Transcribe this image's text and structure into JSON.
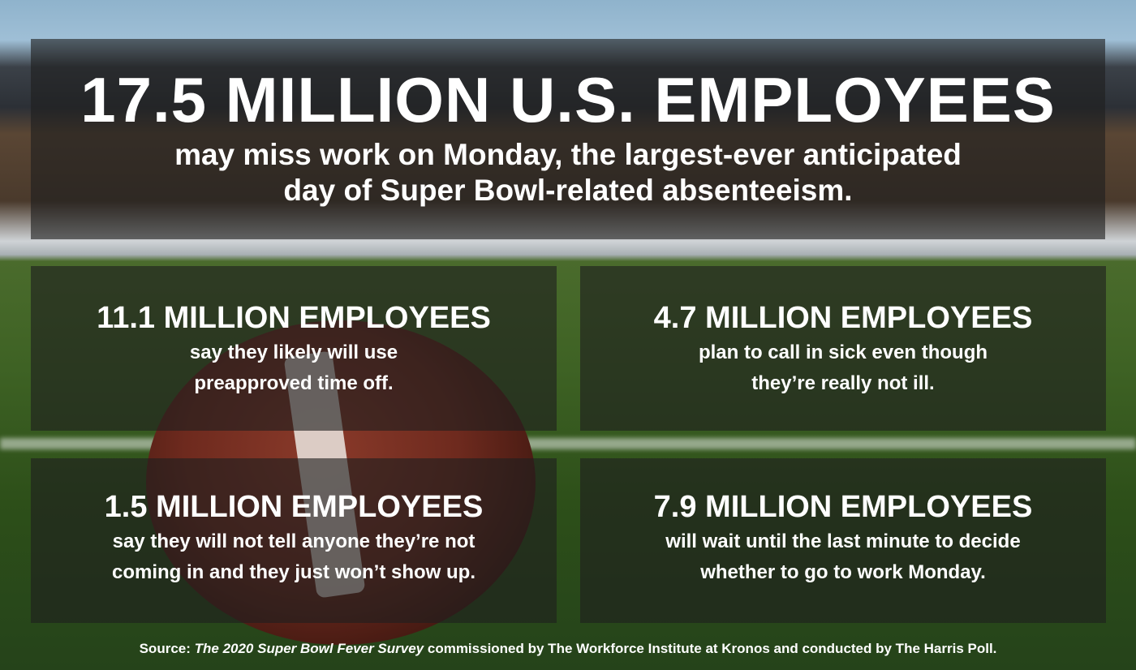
{
  "headline": {
    "title": "17.5 MILLION U.S. EMPLOYEES",
    "subtitle_line1": "may miss work on Monday, the largest-ever anticipated",
    "subtitle_line2": "day of Super Bowl-related absenteeism."
  },
  "stats": [
    {
      "title": "11.1 MILLION EMPLOYEES",
      "line1": "say they likely will use",
      "line2": "preapproved time off."
    },
    {
      "title": "4.7 MILLION EMPLOYEES",
      "line1": "plan to call in sick even though",
      "line2": "they’re really not ill."
    },
    {
      "title": "1.5 MILLION EMPLOYEES",
      "line1": "say they will not tell anyone they’re not",
      "line2": "coming in and they just won’t show up."
    },
    {
      "title": "7.9 MILLION EMPLOYEES",
      "line1": "will wait until the last minute to decide",
      "line2": "whether to go to work Monday."
    }
  ],
  "source": {
    "prefix": "Source: ",
    "title": "The 2020 Super Bowl Fever Survey",
    "suffix": " commissioned by The Workforce Institute at Kronos and conducted by The Harris Poll."
  }
}
